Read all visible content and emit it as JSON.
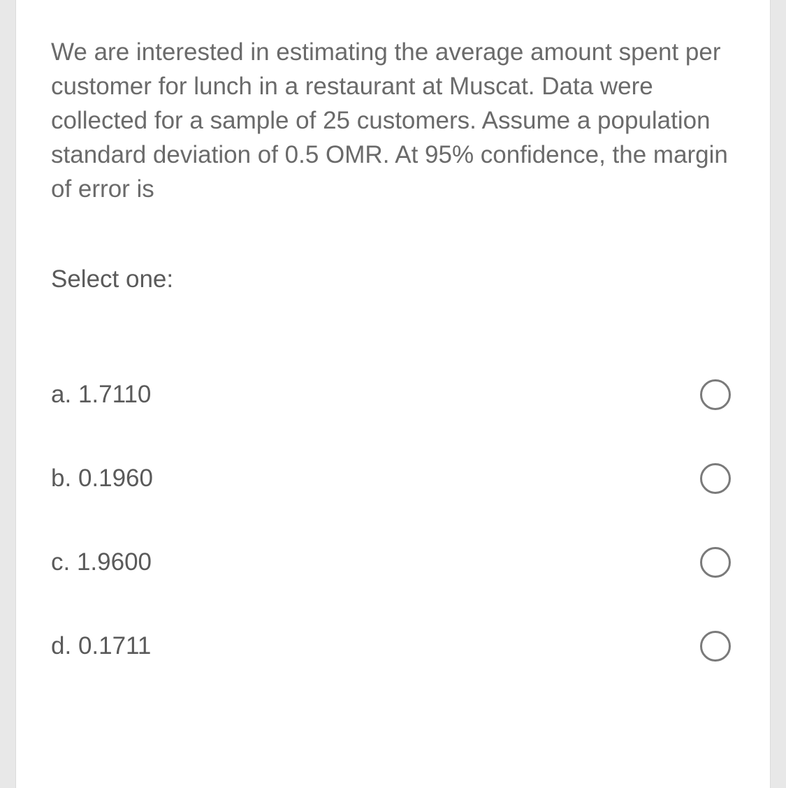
{
  "colors": {
    "page_background": "#e8e8e8",
    "card_background": "#ffffff",
    "card_border": "#dcdcdc",
    "question_text": "#6a6a6a",
    "label_text": "#5a5a5a",
    "option_text": "#5a5a5a",
    "radio_border": "#7a7a7a"
  },
  "typography": {
    "question_fontsize": 35,
    "label_fontsize": 35,
    "option_fontsize": 35,
    "line_height": 1.4
  },
  "question": {
    "text": "We are interested in estimating the average amount spent per customer for lunch in a restaurant at Muscat. Data were collected for a sample of 25 customers. Assume a population standard deviation of 0.5 OMR. At 95% confidence, the margin of error is"
  },
  "select_label": "Select one:",
  "options": [
    {
      "letter": "a.",
      "value": "1.7110"
    },
    {
      "letter": "b.",
      "value": "0.1960"
    },
    {
      "letter": "c.",
      "value": "1.9600"
    },
    {
      "letter": "d.",
      "value": "0.1711"
    }
  ]
}
